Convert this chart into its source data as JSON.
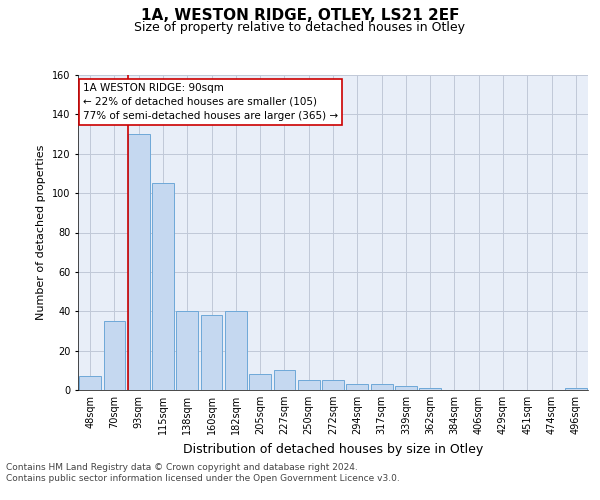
{
  "title": "1A, WESTON RIDGE, OTLEY, LS21 2EF",
  "subtitle": "Size of property relative to detached houses in Otley",
  "xlabel": "Distribution of detached houses by size in Otley",
  "ylabel": "Number of detached properties",
  "categories": [
    "48sqm",
    "70sqm",
    "93sqm",
    "115sqm",
    "138sqm",
    "160sqm",
    "182sqm",
    "205sqm",
    "227sqm",
    "250sqm",
    "272sqm",
    "294sqm",
    "317sqm",
    "339sqm",
    "362sqm",
    "384sqm",
    "406sqm",
    "429sqm",
    "451sqm",
    "474sqm",
    "496sqm"
  ],
  "values": [
    7,
    35,
    130,
    105,
    40,
    38,
    40,
    8,
    10,
    5,
    5,
    3,
    3,
    2,
    1,
    0,
    0,
    0,
    0,
    0,
    1
  ],
  "bar_color": "#c5d8f0",
  "bar_edge_color": "#6ea8d8",
  "highlight_line_color": "#cc0000",
  "highlight_line_index": 2,
  "annotation_box_text": "1A WESTON RIDGE: 90sqm\n← 22% of detached houses are smaller (105)\n77% of semi-detached houses are larger (365) →",
  "annotation_box_color": "#cc0000",
  "ylim": [
    0,
    160
  ],
  "yticks": [
    0,
    20,
    40,
    60,
    80,
    100,
    120,
    140,
    160
  ],
  "grid_color": "#c0c8d8",
  "background_color": "#e8eef8",
  "footer_line1": "Contains HM Land Registry data © Crown copyright and database right 2024.",
  "footer_line2": "Contains public sector information licensed under the Open Government Licence v3.0.",
  "title_fontsize": 11,
  "subtitle_fontsize": 9,
  "xlabel_fontsize": 9,
  "ylabel_fontsize": 8,
  "tick_fontsize": 7,
  "annotation_fontsize": 7.5,
  "footer_fontsize": 6.5
}
